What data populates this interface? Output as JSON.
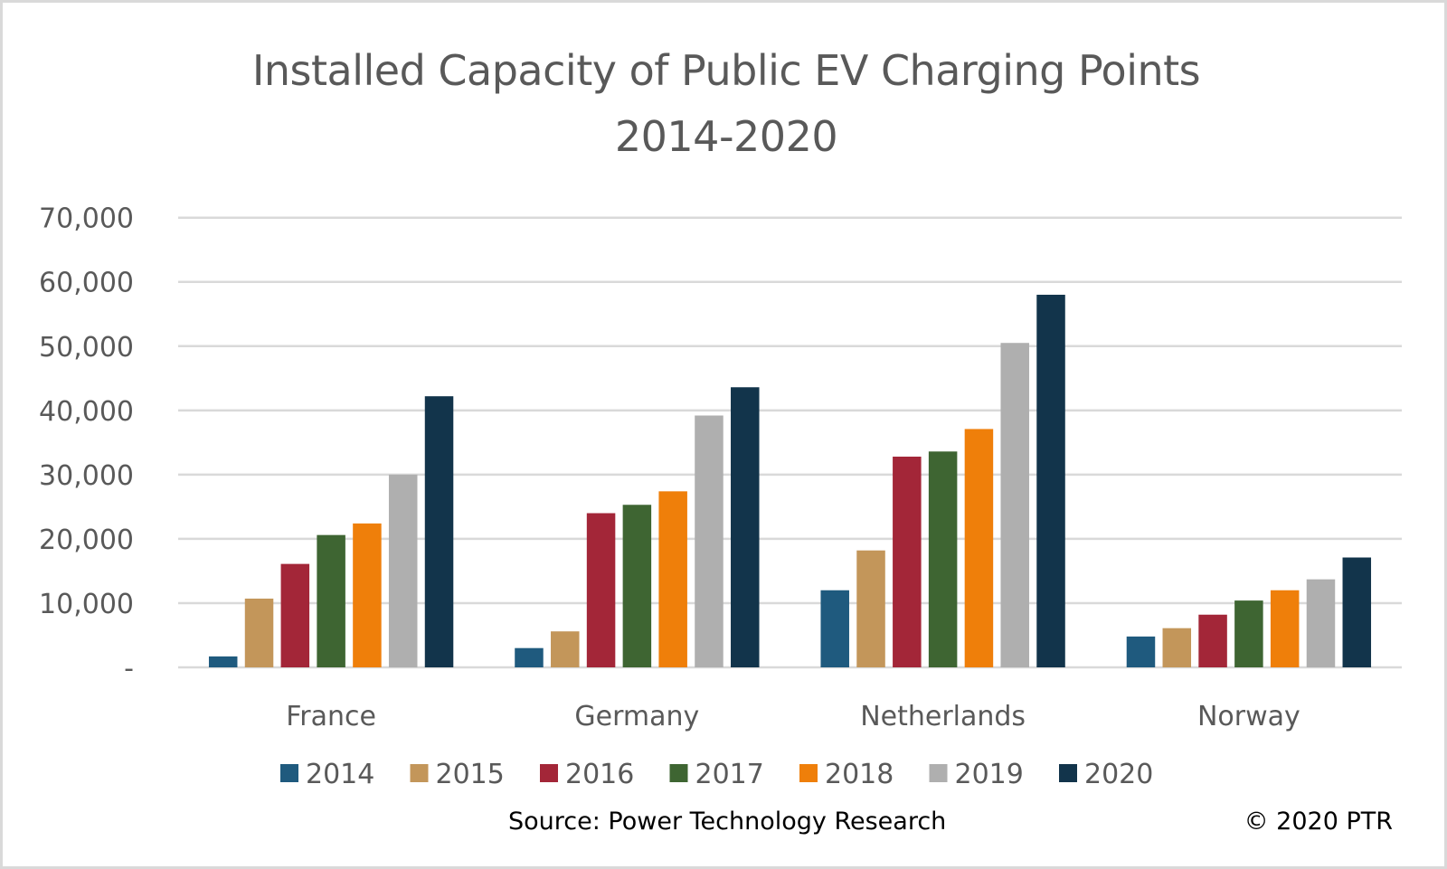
{
  "chart_data": {
    "type": "bar",
    "title": "Installed Capacity of Public EV Charging Points",
    "subtitle": "2014-2020",
    "xlabel": "",
    "ylabel": "",
    "ylim": [
      0,
      70000
    ],
    "yticks": [
      0,
      10000,
      20000,
      30000,
      40000,
      50000,
      60000,
      70000
    ],
    "ytick_labels": [
      "-",
      "10,000",
      "20,000",
      "30,000",
      "40,000",
      "50,000",
      "60,000",
      "70,000"
    ],
    "grid": true,
    "legend_position": "bottom",
    "categories": [
      "France",
      "Germany",
      "Netherlands",
      "Norway"
    ],
    "series": [
      {
        "name": "2014",
        "color": "#1f5a7e",
        "values": [
          1700,
          3000,
          12000,
          4800
        ]
      },
      {
        "name": "2015",
        "color": "#c3965a",
        "values": [
          10700,
          5600,
          18200,
          6100
        ]
      },
      {
        "name": "2016",
        "color": "#a32638",
        "values": [
          16100,
          24000,
          32800,
          8200
        ]
      },
      {
        "name": "2017",
        "color": "#3e6532",
        "values": [
          20600,
          25300,
          33600,
          10400
        ]
      },
      {
        "name": "2018",
        "color": "#ef7f0a",
        "values": [
          22400,
          27400,
          37100,
          12000
        ]
      },
      {
        "name": "2019",
        "color": "#afafaf",
        "values": [
          30000,
          39200,
          50500,
          13700
        ]
      },
      {
        "name": "2020",
        "color": "#12344b",
        "values": [
          42200,
          43600,
          58000,
          17100
        ]
      }
    ]
  },
  "footer": {
    "source": "Source: Power Technology Research",
    "copyright": "© 2020 PTR"
  }
}
